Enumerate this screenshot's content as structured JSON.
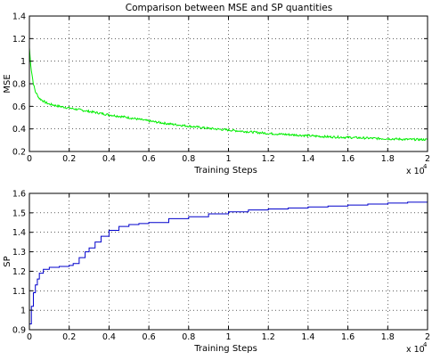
{
  "title": "Comparison between MSE and SP quantities",
  "chart_data": [
    {
      "type": "line",
      "ylabel": "MSE",
      "xlabel": "Training Steps",
      "x_multiplier_label": "x 10",
      "x_multiplier_exponent": "4",
      "xlim": [
        0,
        2
      ],
      "ylim": [
        0.2,
        1.4
      ],
      "xticks": [
        "0",
        "0.2",
        "0.4",
        "0.6",
        "0.8",
        "1",
        "1.2",
        "1.4",
        "1.6",
        "1.8",
        "2"
      ],
      "yticks": [
        "0.2",
        "0.4",
        "0.6",
        "0.8",
        "1",
        "1.2",
        "1.4"
      ],
      "grid": "dotted",
      "series": [
        {
          "color": "#00ee00",
          "x": [
            0,
            0.005,
            0.01,
            0.02,
            0.03,
            0.05,
            0.08,
            0.1,
            0.15,
            0.2,
            0.3,
            0.4,
            0.5,
            0.6,
            0.7,
            0.8,
            0.9,
            1.0,
            1.1,
            1.2,
            1.3,
            1.4,
            1.5,
            1.6,
            1.7,
            1.8,
            1.9,
            2.0
          ],
          "y": [
            1.12,
            1.0,
            0.92,
            0.8,
            0.73,
            0.67,
            0.635,
            0.62,
            0.6,
            0.585,
            0.555,
            0.525,
            0.5,
            0.47,
            0.445,
            0.425,
            0.405,
            0.39,
            0.375,
            0.36,
            0.35,
            0.34,
            0.33,
            0.325,
            0.318,
            0.313,
            0.307,
            0.305
          ],
          "noise": 0.012
        }
      ]
    },
    {
      "type": "line",
      "ylabel": "SP",
      "xlabel": "Training Steps",
      "x_multiplier_label": "x 10",
      "x_multiplier_exponent": "4",
      "xlim": [
        0,
        2
      ],
      "ylim": [
        0.9,
        1.6
      ],
      "xticks": [
        "0",
        "0.2",
        "0.4",
        "0.6",
        "0.8",
        "1",
        "1.2",
        "1.4",
        "1.6",
        "1.8",
        "2"
      ],
      "yticks": [
        "0.9",
        "1",
        "1.1",
        "1.2",
        "1.3",
        "1.4",
        "1.5",
        "1.6"
      ],
      "grid": "dotted",
      "series": [
        {
          "color": "#0000cc",
          "x": [
            0,
            0.01,
            0.02,
            0.03,
            0.04,
            0.05,
            0.07,
            0.1,
            0.15,
            0.2,
            0.22,
            0.25,
            0.28,
            0.3,
            0.33,
            0.36,
            0.4,
            0.45,
            0.5,
            0.55,
            0.6,
            0.7,
            0.8,
            0.9,
            1.0,
            1.1,
            1.2,
            1.3,
            1.4,
            1.5,
            1.6,
            1.7,
            1.8,
            1.9,
            2.0
          ],
          "y": [
            0.93,
            1.02,
            1.09,
            1.13,
            1.16,
            1.19,
            1.21,
            1.22,
            1.225,
            1.23,
            1.24,
            1.27,
            1.3,
            1.32,
            1.35,
            1.38,
            1.41,
            1.43,
            1.44,
            1.445,
            1.45,
            1.47,
            1.48,
            1.495,
            1.505,
            1.515,
            1.52,
            1.525,
            1.53,
            1.535,
            1.54,
            1.545,
            1.55,
            1.555,
            1.557
          ]
        }
      ]
    }
  ]
}
